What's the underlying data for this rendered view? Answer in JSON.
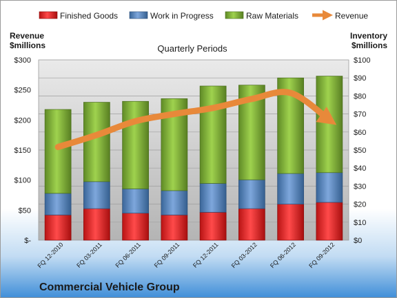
{
  "chart_data": {
    "type": "bar",
    "stacked": true,
    "title": "Quarterly Periods",
    "footer_title": "Commercial Vehicle Group",
    "left_axis_label": [
      "Revenue",
      "$millions"
    ],
    "right_axis_label": [
      "Inventory",
      "$millions"
    ],
    "categories": [
      "FQ 12-2010",
      "FQ 03-2011",
      "FQ 06-2011",
      "FQ 09-2011",
      "FQ 12-2011",
      "FQ 03-2012",
      "FQ 06-2012",
      "FQ 09-2012"
    ],
    "left_ticks": [
      "$-",
      "$50",
      "$100",
      "$150",
      "$200",
      "$250",
      "$300"
    ],
    "right_ticks": [
      "$0",
      "$10",
      "$20",
      "$30",
      "$40",
      "$50",
      "$60",
      "$70",
      "$80",
      "$90",
      "$100"
    ],
    "left_ylim": [
      0,
      300
    ],
    "right_ylim": [
      0,
      100
    ],
    "legend_position": "top",
    "grid": true,
    "series": [
      {
        "name": "Finished Goods",
        "axis": "right",
        "kind": "bar",
        "color": "#e02020",
        "values": [
          14,
          17.5,
          15,
          14,
          15.5,
          17.5,
          20,
          21
        ]
      },
      {
        "name": "Work in Progress",
        "axis": "right",
        "kind": "bar",
        "color": "#4f81bd",
        "values": [
          12,
          15,
          13.5,
          13.5,
          16,
          16,
          17,
          16.5
        ]
      },
      {
        "name": "Raw Materials",
        "axis": "right",
        "kind": "bar",
        "color": "#8cc43f",
        "values": [
          46.5,
          44,
          48.5,
          51,
          54,
          52.5,
          53,
          53.5
        ]
      },
      {
        "name": "Revenue",
        "axis": "left",
        "kind": "line",
        "color": "#e8893a",
        "values": [
          155,
          175,
          198,
          210,
          220,
          235,
          245,
          200
        ]
      }
    ]
  }
}
